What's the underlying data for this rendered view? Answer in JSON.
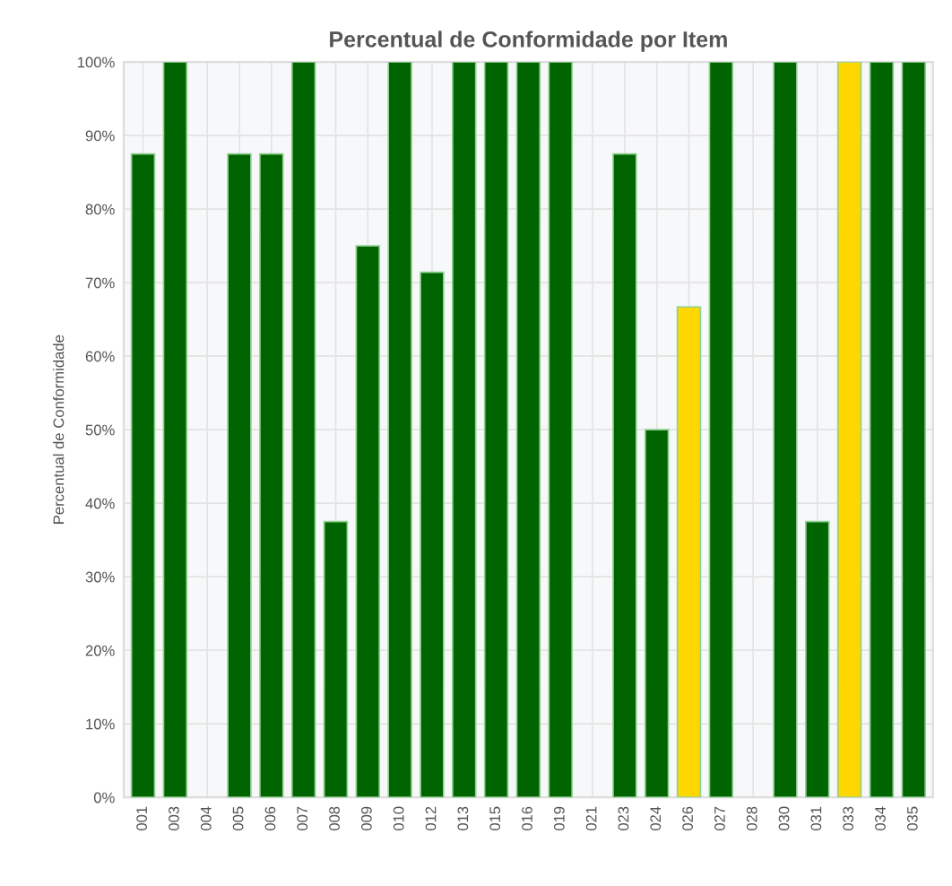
{
  "chart_data": {
    "type": "bar",
    "title": "Percentual de Conformidade por Item",
    "ylabel": "Percentual de Conformidade",
    "categories": [
      "001",
      "003",
      "004",
      "005",
      "006",
      "007",
      "008",
      "009",
      "010",
      "012",
      "013",
      "015",
      "016",
      "019",
      "021",
      "023",
      "024",
      "026",
      "027",
      "028",
      "030",
      "031",
      "033",
      "034",
      "035"
    ],
    "values": [
      87.5,
      100,
      0,
      87.5,
      87.5,
      100,
      37.5,
      75,
      100,
      71.4,
      100,
      100,
      100,
      100,
      0,
      87.5,
      50,
      66.7,
      100,
      0,
      100,
      37.5,
      100,
      100,
      100
    ],
    "colors": [
      "#006400",
      "#006400",
      "#006400",
      "#006400",
      "#006400",
      "#006400",
      "#006400",
      "#006400",
      "#006400",
      "#006400",
      "#006400",
      "#006400",
      "#006400",
      "#006400",
      "#006400",
      "#006400",
      "#006400",
      "#ffd700",
      "#006400",
      "#006400",
      "#006400",
      "#006400",
      "#ffd700",
      "#006400",
      "#006400"
    ],
    "ylim": [
      0,
      100
    ],
    "yticks": [
      {
        "value": 0,
        "label": "0%"
      },
      {
        "value": 10,
        "label": "10%"
      },
      {
        "value": 20,
        "label": "20%"
      },
      {
        "value": 30,
        "label": "30%"
      },
      {
        "value": 40,
        "label": "40%"
      },
      {
        "value": 50,
        "label": "50%"
      },
      {
        "value": 60,
        "label": "60%"
      },
      {
        "value": 70,
        "label": "70%"
      },
      {
        "value": 80,
        "label": "80%"
      },
      {
        "value": 90,
        "label": "90%"
      },
      {
        "value": 100,
        "label": "100%"
      }
    ],
    "grid": true
  }
}
